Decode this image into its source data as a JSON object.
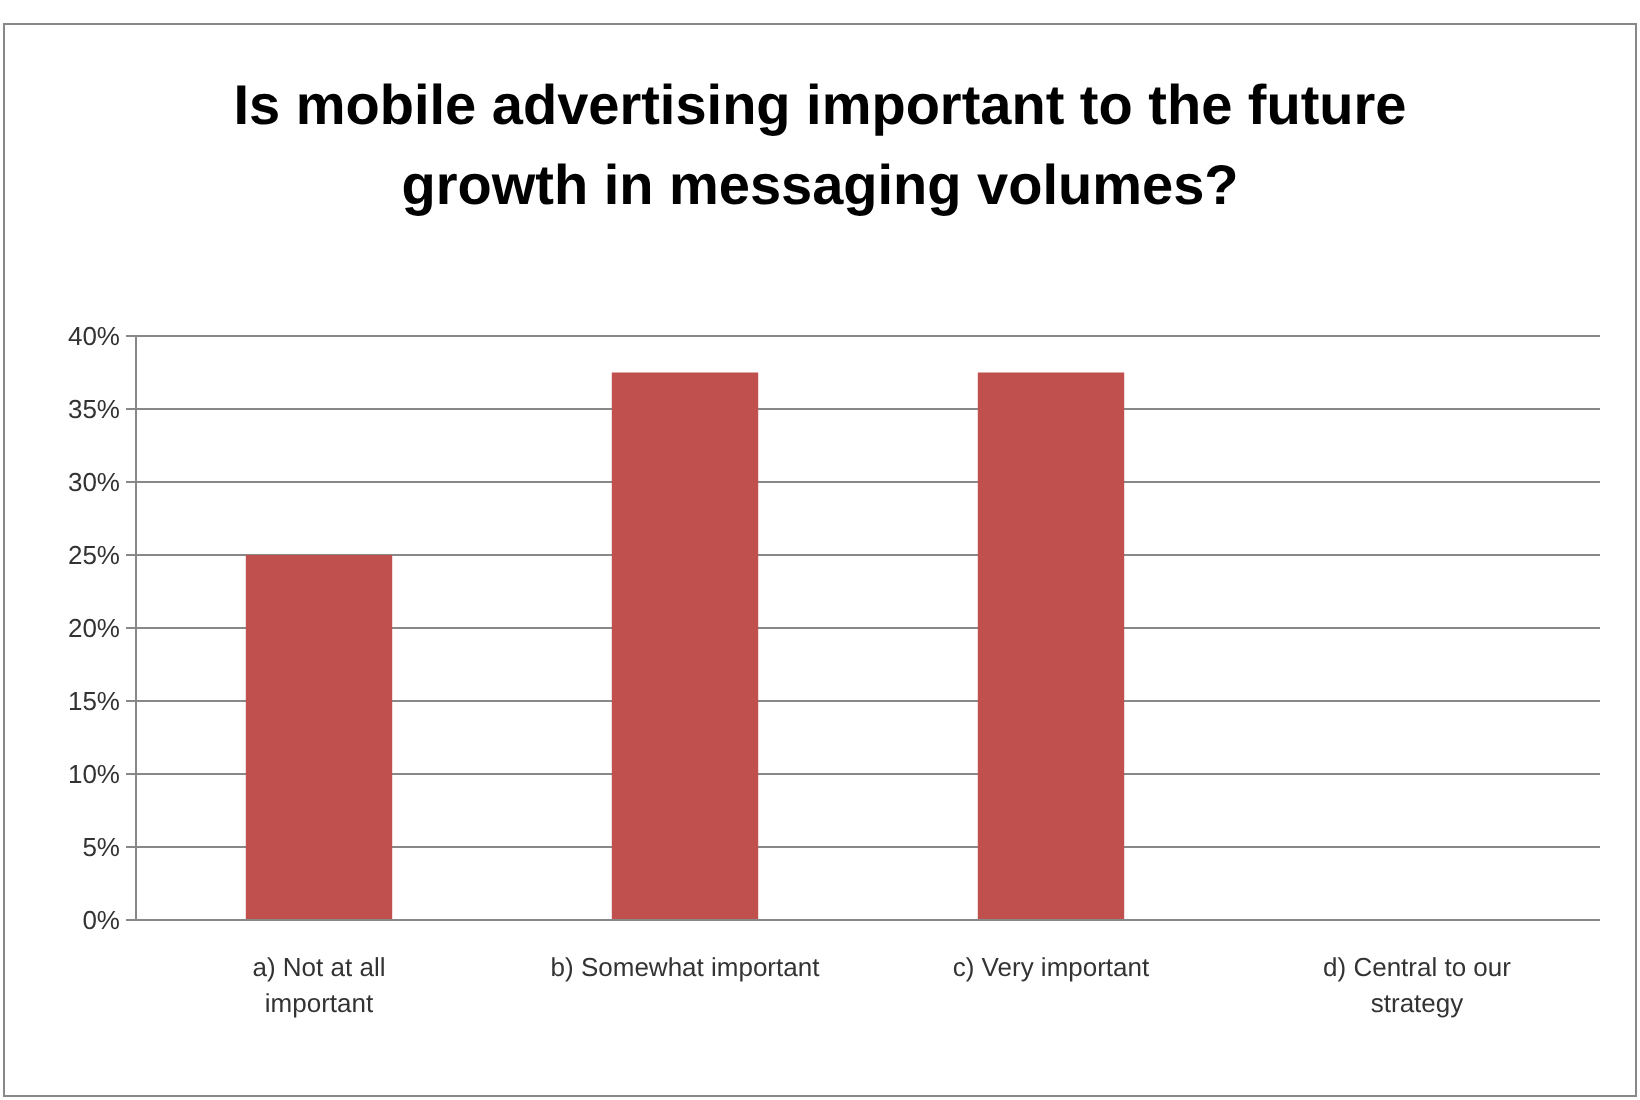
{
  "chart_data": {
    "type": "bar",
    "title": "Is mobile advertising important to the future growth in messaging volumes?",
    "categories": [
      "a)   Not at all important",
      "b)   Somewhat important",
      "c)   Very important",
      "d)   Central to our strategy"
    ],
    "values": [
      25,
      37.5,
      37.5,
      0
    ],
    "color": "#c0504d",
    "ylim": [
      0,
      40
    ],
    "yticks": [
      {
        "value": 0,
        "label": "0%"
      },
      {
        "value": 5,
        "label": "5%"
      },
      {
        "value": 10,
        "label": "10%"
      },
      {
        "value": 15,
        "label": "15%"
      },
      {
        "value": 20,
        "label": "20%"
      },
      {
        "value": 25,
        "label": "25%"
      },
      {
        "value": 30,
        "label": "30%"
      },
      {
        "value": 35,
        "label": "35%"
      },
      {
        "value": 40,
        "label": "40%"
      }
    ],
    "grid": "y"
  }
}
